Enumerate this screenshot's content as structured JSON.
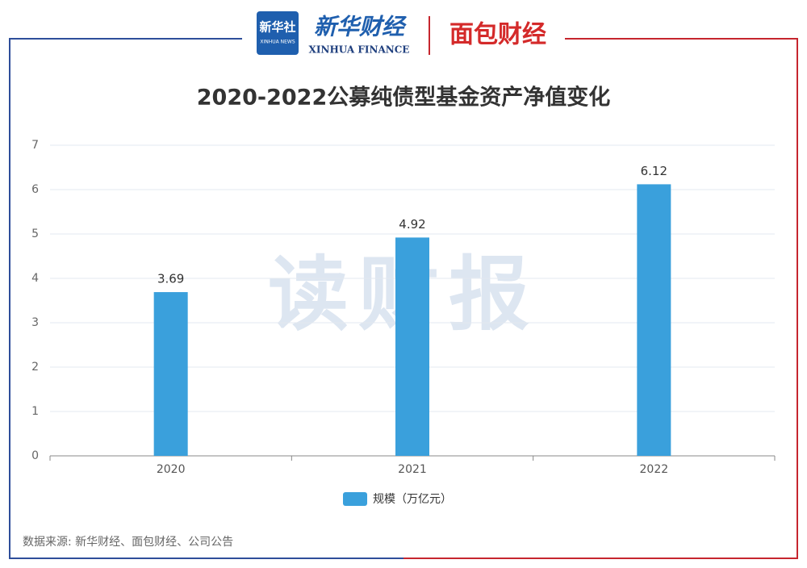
{
  "header": {
    "logo1": "新华社",
    "logo1_sub": "XINHUA NEWS",
    "logo2": "新华财经",
    "logo2_sub": "XINHUA FINANCE",
    "logo3": "面包财经"
  },
  "watermark": "读财报",
  "chart_data": {
    "type": "bar",
    "title": "2020-2022公募纯债型基金资产净值变化",
    "categories": [
      "2020",
      "2021",
      "2022"
    ],
    "series": [
      {
        "name": "规模（万亿元）",
        "color": "#3aa0dc",
        "values": [
          3.69,
          4.92,
          6.12
        ]
      }
    ],
    "ylim": [
      0,
      7
    ],
    "yticks": [
      0,
      1,
      2,
      3,
      4,
      5,
      6,
      7
    ],
    "grid": true,
    "source": "数据来源: 新华财经、面包财经、公司公告"
  }
}
